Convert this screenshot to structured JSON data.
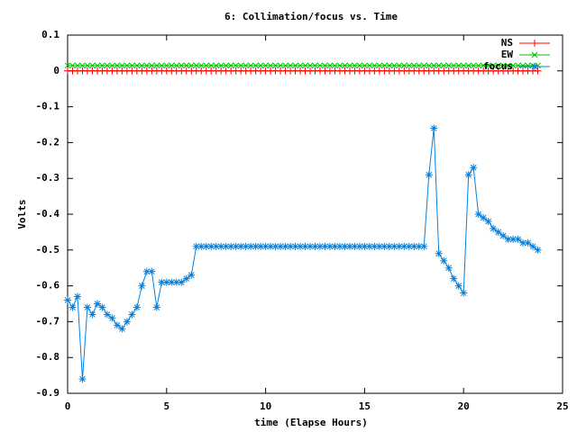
{
  "chart_data": {
    "type": "line",
    "title": "6: Collimation/focus vs. Time",
    "xlabel": "time (Elapse Hours)",
    "ylabel": "Volts",
    "x": [
      0,
      0.25,
      0.5,
      0.75,
      1,
      1.25,
      1.5,
      1.75,
      2,
      2.25,
      2.5,
      2.75,
      3,
      3.25,
      3.5,
      3.75,
      4,
      4.25,
      4.5,
      4.75,
      5,
      5.25,
      5.5,
      5.75,
      6,
      6.25,
      6.5,
      6.75,
      7,
      7.25,
      7.5,
      7.75,
      8,
      8.25,
      8.5,
      8.75,
      9,
      9.25,
      9.5,
      9.75,
      10,
      10.25,
      10.5,
      10.75,
      11,
      11.25,
      11.5,
      11.75,
      12,
      12.25,
      12.5,
      12.75,
      13,
      13.25,
      13.5,
      13.75,
      14,
      14.25,
      14.5,
      14.75,
      15,
      15.25,
      15.5,
      15.75,
      16,
      16.25,
      16.5,
      16.75,
      17,
      17.25,
      17.5,
      17.75,
      18,
      18.25,
      18.5,
      18.75,
      19,
      19.25,
      19.5,
      19.75,
      20,
      20.25,
      20.5,
      20.75,
      21,
      21.25,
      21.5,
      21.75,
      22,
      22.25,
      22.5,
      22.75,
      23,
      23.25,
      23.5,
      23.75
    ],
    "series": [
      {
        "name": "NS",
        "color": "#ff0000",
        "marker": "plus",
        "values": [
          0,
          0,
          0,
          0,
          0,
          0,
          0,
          0,
          0,
          0,
          0,
          0,
          0,
          0,
          0,
          0,
          0,
          0,
          0,
          0,
          0,
          0,
          0,
          0,
          0,
          0,
          0,
          0,
          0,
          0,
          0,
          0,
          0,
          0,
          0,
          0,
          0,
          0,
          0,
          0,
          0,
          0,
          0,
          0,
          0,
          0,
          0,
          0,
          0,
          0,
          0,
          0,
          0,
          0,
          0,
          0,
          0,
          0,
          0,
          0,
          0,
          0,
          0,
          0,
          0,
          0,
          0,
          0,
          0,
          0,
          0,
          0,
          0,
          0,
          0,
          0,
          0,
          0,
          0,
          0,
          0,
          0,
          0,
          0,
          0,
          0,
          0,
          0,
          0,
          0,
          0,
          0,
          0,
          0,
          0,
          0
        ]
      },
      {
        "name": "EW",
        "color": "#00c000",
        "marker": "cross",
        "values": [
          0.015,
          0.015,
          0.015,
          0.015,
          0.015,
          0.015,
          0.015,
          0.015,
          0.015,
          0.015,
          0.015,
          0.015,
          0.015,
          0.015,
          0.015,
          0.015,
          0.015,
          0.015,
          0.015,
          0.015,
          0.015,
          0.015,
          0.015,
          0.015,
          0.015,
          0.015,
          0.015,
          0.015,
          0.015,
          0.015,
          0.015,
          0.015,
          0.015,
          0.015,
          0.015,
          0.015,
          0.015,
          0.015,
          0.015,
          0.015,
          0.015,
          0.015,
          0.015,
          0.015,
          0.015,
          0.015,
          0.015,
          0.015,
          0.015,
          0.015,
          0.015,
          0.015,
          0.015,
          0.015,
          0.015,
          0.015,
          0.015,
          0.015,
          0.015,
          0.015,
          0.015,
          0.015,
          0.015,
          0.015,
          0.015,
          0.015,
          0.015,
          0.015,
          0.015,
          0.015,
          0.015,
          0.015,
          0.015,
          0.015,
          0.015,
          0.015,
          0.015,
          0.015,
          0.015,
          0.015,
          0.015,
          0.015,
          0.015,
          0.015,
          0.015,
          0.015,
          0.015,
          0.015,
          0.015,
          0.015,
          0.015,
          0.015,
          0.015,
          0.015,
          0.015,
          0.015
        ]
      },
      {
        "name": "focus",
        "color": "#0080e0",
        "marker": "star",
        "values": [
          -0.64,
          -0.66,
          -0.63,
          -0.86,
          -0.66,
          -0.68,
          -0.65,
          -0.66,
          -0.68,
          -0.69,
          -0.71,
          -0.72,
          -0.7,
          -0.68,
          -0.66,
          -0.6,
          -0.56,
          -0.56,
          -0.66,
          -0.59,
          -0.59,
          -0.59,
          -0.59,
          -0.59,
          -0.58,
          -0.57,
          -0.49,
          -0.49,
          -0.49,
          -0.49,
          -0.49,
          -0.49,
          -0.49,
          -0.49,
          -0.49,
          -0.49,
          -0.49,
          -0.49,
          -0.49,
          -0.49,
          -0.49,
          -0.49,
          -0.49,
          -0.49,
          -0.49,
          -0.49,
          -0.49,
          -0.49,
          -0.49,
          -0.49,
          -0.49,
          -0.49,
          -0.49,
          -0.49,
          -0.49,
          -0.49,
          -0.49,
          -0.49,
          -0.49,
          -0.49,
          -0.49,
          -0.49,
          -0.49,
          -0.49,
          -0.49,
          -0.49,
          -0.49,
          -0.49,
          -0.49,
          -0.49,
          -0.49,
          -0.49,
          -0.49,
          -0.29,
          -0.16,
          -0.51,
          -0.53,
          -0.55,
          -0.58,
          -0.6,
          -0.62,
          -0.29,
          -0.27,
          -0.4,
          -0.41,
          -0.42,
          -0.44,
          -0.45,
          -0.46,
          -0.47,
          -0.47,
          -0.47,
          -0.48,
          -0.48,
          -0.49,
          -0.5
        ]
      }
    ],
    "xlim": [
      0,
      25
    ],
    "xticks": [
      0,
      5,
      10,
      15,
      20,
      25
    ],
    "ylim": [
      -0.9,
      0.1
    ],
    "yticks": [
      -0.9,
      -0.8,
      -0.7,
      -0.6,
      -0.5,
      -0.4,
      -0.3,
      -0.2,
      -0.1,
      0,
      0.1
    ],
    "legend": "top-right"
  }
}
